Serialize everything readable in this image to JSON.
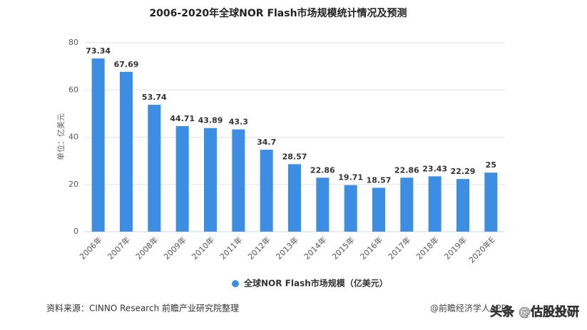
{
  "chart_data": {
    "type": "bar",
    "title": "2006-2020年全球NOR Flash市场规模统计情况及预测",
    "y_label": "单位：亿美元",
    "categories": [
      "2006年",
      "2007年",
      "2008年",
      "2009年",
      "2010年",
      "2011年",
      "2012年",
      "2013年",
      "2014年",
      "2015年",
      "2016年",
      "2017年",
      "2018年",
      "2019年",
      "2020年E"
    ],
    "series": [
      {
        "name": "全球NOR Flash市场规模（亿美元）",
        "color": "#3b8ee3",
        "values": [
          73.34,
          67.69,
          53.74,
          44.71,
          43.89,
          43.3,
          34.7,
          28.57,
          22.86,
          19.71,
          18.57,
          22.86,
          23.43,
          22.29,
          25
        ]
      }
    ],
    "ylim": [
      0,
      80
    ],
    "yticks": [
      0,
      20,
      40,
      60,
      80
    ],
    "grid": true,
    "legend": "bottom",
    "source": "资料来源：CINNO Research 前瞻产业研究院整理",
    "watermarks": [
      "@前瞻经济学人APP",
      "头条 @估股投研"
    ]
  }
}
